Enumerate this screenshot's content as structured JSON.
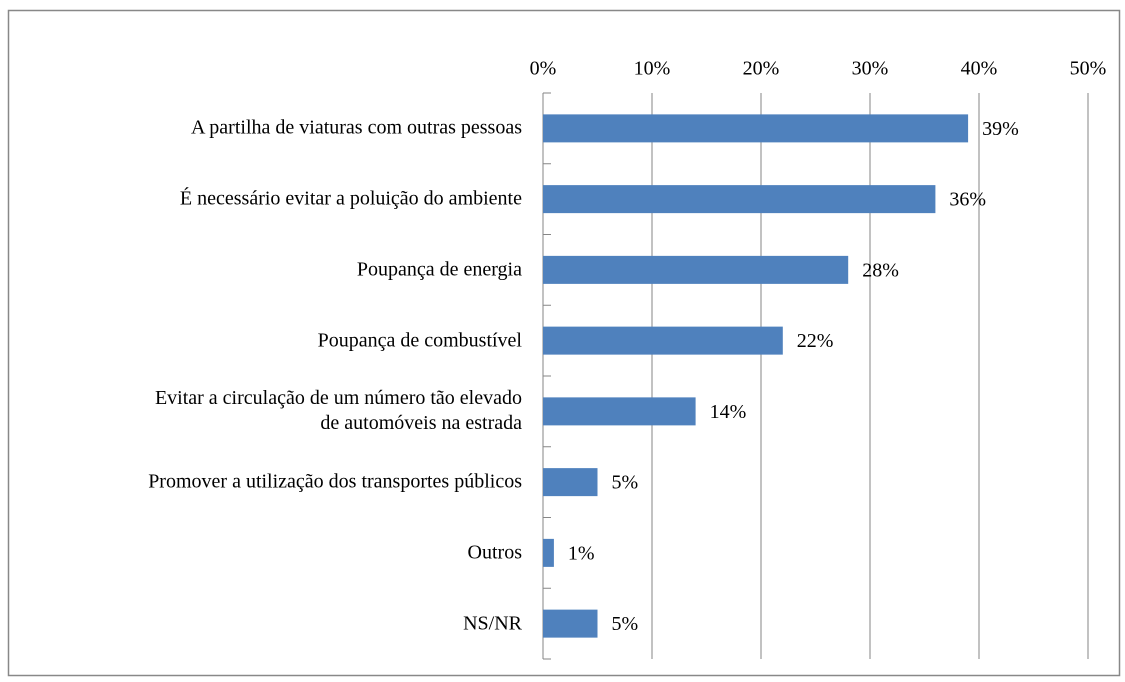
{
  "chart_data": {
    "type": "bar",
    "orientation": "horizontal",
    "categories": [
      "A partilha de viaturas com outras pessoas",
      "É necessário evitar a poluição do ambiente",
      "Poupança de energia",
      "Poupança de combustível",
      "Evitar a circulação de um número tão elevado\nde automóveis na estrada",
      "Promover a utilização dos transportes públicos",
      "Outros",
      "NS/NR"
    ],
    "values": [
      39,
      36,
      28,
      22,
      14,
      5,
      1,
      5
    ],
    "value_labels": [
      "39%",
      "36%",
      "28%",
      "22%",
      "14%",
      "5%",
      "1%",
      "5%"
    ],
    "color": "#4f81bd",
    "xlim": [
      0,
      50
    ],
    "xticks": [
      {
        "value": 0,
        "label": "0%"
      },
      {
        "value": 10,
        "label": "10%"
      },
      {
        "value": 20,
        "label": "20%"
      },
      {
        "value": 30,
        "label": "30%"
      },
      {
        "value": 40,
        "label": "40%"
      },
      {
        "value": 50,
        "label": "50%"
      }
    ],
    "grid": true
  }
}
